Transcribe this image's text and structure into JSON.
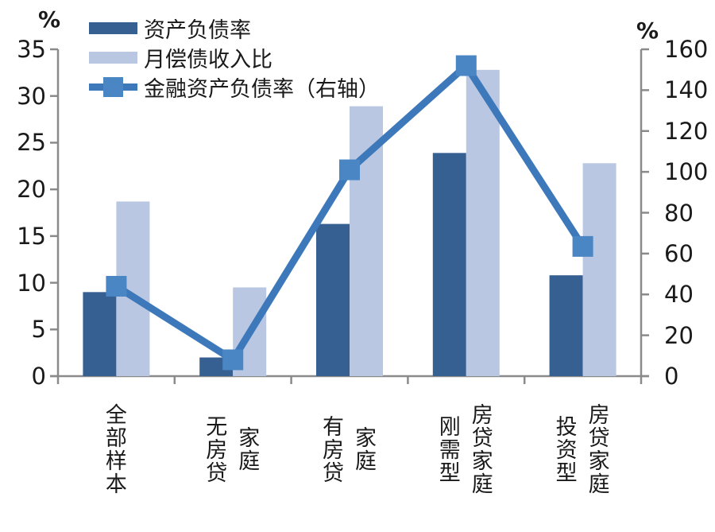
{
  "chart_data": {
    "type": "combo-bar-line",
    "title": "",
    "categories": [
      "全部样本",
      "无房贷家庭",
      "有房贷家庭",
      "刚需型房贷家庭",
      "投资型房贷家庭"
    ],
    "category_label_columns": [
      [
        "全部样本"
      ],
      [
        "无房贷",
        "家庭"
      ],
      [
        "有房贷",
        "家庭"
      ],
      [
        "刚需型",
        "房贷家庭"
      ],
      [
        "投资型",
        "房贷家庭"
      ]
    ],
    "series": [
      {
        "name": "资产负债率",
        "type": "bar",
        "axis": "left",
        "color": "#376092",
        "values": [
          9.0,
          2.0,
          16.3,
          23.9,
          10.8
        ]
      },
      {
        "name": "月偿债收入比",
        "type": "bar",
        "axis": "left",
        "color": "#b9c7e2",
        "values": [
          18.7,
          9.5,
          28.9,
          32.8,
          22.8
        ]
      },
      {
        "name": "金融资产负债率（右轴）",
        "type": "line",
        "axis": "right",
        "color": "#3d79ba",
        "marker": "square",
        "marker_color": "#4a86c4",
        "values": [
          44,
          8,
          101,
          152,
          63.5
        ]
      }
    ],
    "left_axis": {
      "unit_label": "%",
      "min": 0,
      "max": 35,
      "ticks": [
        0,
        5,
        10,
        15,
        20,
        25,
        30,
        35
      ]
    },
    "right_axis": {
      "unit_label": "%",
      "min": 0,
      "max": 160,
      "ticks": [
        0,
        20,
        40,
        60,
        80,
        100,
        120,
        140,
        160
      ]
    },
    "legend_position": "top-left",
    "grid": false,
    "colors": {
      "axis_line": "#8a8a8a",
      "text": "#1a1a1a",
      "background": "#ffffff"
    }
  }
}
